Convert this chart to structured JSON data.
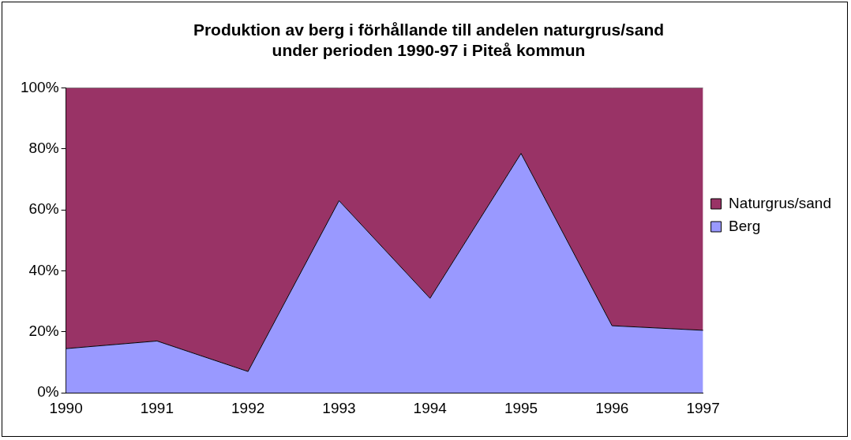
{
  "chart_data": {
    "type": "area",
    "title": "Produktion av berg i förhållande till andelen naturgrus/sand\nunder perioden 1990-97 i Piteå kommun",
    "categories": [
      "1990",
      "1991",
      "1992",
      "1993",
      "1994",
      "1995",
      "1996",
      "1997"
    ],
    "stacked": true,
    "series": [
      {
        "name": "Berg",
        "color": "#9999ff",
        "values": [
          14.5,
          17,
          7,
          63,
          31,
          78.5,
          22,
          20.5
        ]
      },
      {
        "name": "Naturgrus/sand",
        "color": "#993366",
        "values": [
          85.5,
          83,
          93,
          37,
          69,
          21.5,
          78,
          79.5
        ]
      }
    ],
    "ylim": [
      0,
      100
    ],
    "yticks": [
      {
        "value": 0,
        "label": "0%"
      },
      {
        "value": 20,
        "label": "20%"
      },
      {
        "value": 40,
        "label": "40%"
      },
      {
        "value": 60,
        "label": "60%"
      },
      {
        "value": 80,
        "label": "80%"
      },
      {
        "value": 100,
        "label": "100%"
      }
    ],
    "grid": false,
    "legend": "right"
  }
}
